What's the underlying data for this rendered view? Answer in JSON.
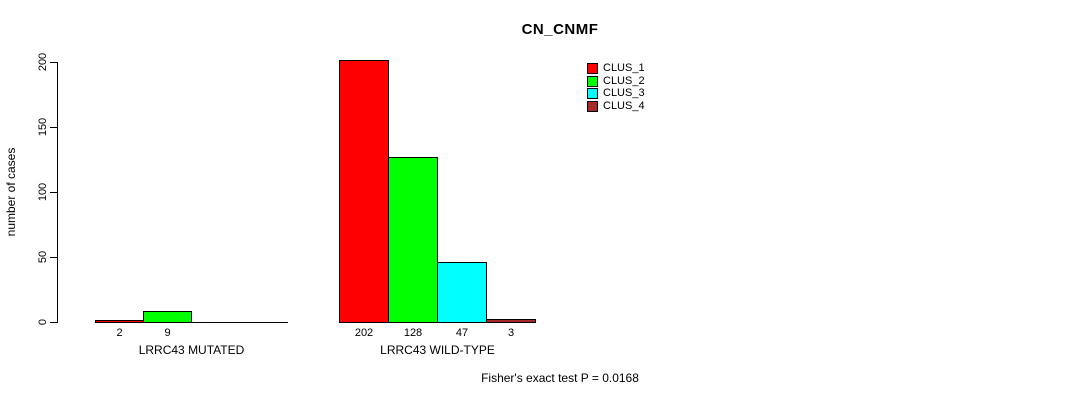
{
  "title": "CN_CNMF",
  "chart_data": {
    "type": "bar",
    "title": "CN_CNMF",
    "xlabel": "",
    "ylabel": "number of cases",
    "ylim": [
      0,
      200
    ],
    "yticks": [
      0,
      50,
      100,
      150,
      200
    ],
    "grid": false,
    "legend_position": "top-right",
    "series": [
      {
        "name": "CLUS_1",
        "color": "#ff0000"
      },
      {
        "name": "CLUS_2",
        "color": "#00ff00"
      },
      {
        "name": "CLUS_3",
        "color": "#00ffff"
      },
      {
        "name": "CLUS_4",
        "color": "#a52a2a"
      }
    ],
    "groups": [
      {
        "label": "LRRC43 MUTATED",
        "values": [
          2,
          9,
          0,
          0
        ],
        "bar_labels": [
          "2",
          "9",
          "",
          ""
        ]
      },
      {
        "label": "LRRC43 WILD-TYPE",
        "values": [
          202,
          128,
          47,
          3
        ],
        "bar_labels": [
          "202",
          "128",
          "47",
          "3"
        ]
      }
    ],
    "annotation": "Fisher's exact test P = 0.0168"
  }
}
